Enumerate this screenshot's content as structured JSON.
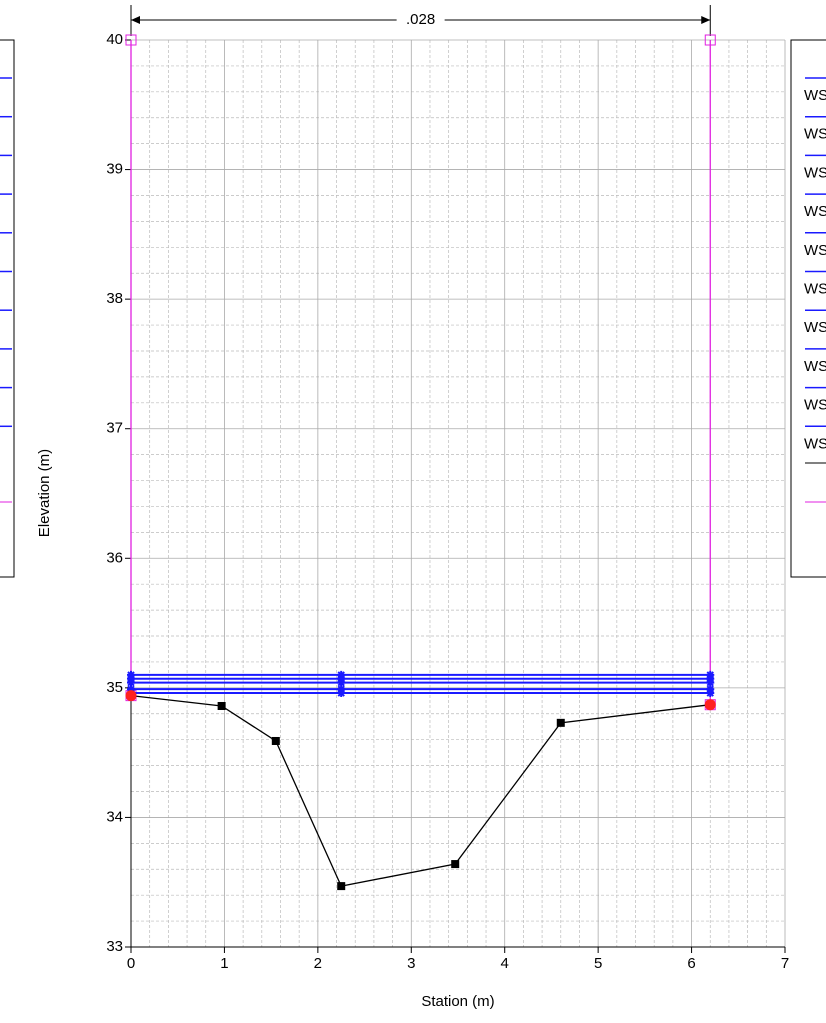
{
  "chart_data": {
    "type": "line",
    "xlabel": "Station (m)",
    "ylabel": "Elevation (m)",
    "xlim": [
      0,
      7
    ],
    "ylim": [
      33,
      40
    ],
    "xticks": [
      0,
      1,
      2,
      3,
      4,
      5,
      6,
      7
    ],
    "yticks": [
      33,
      34,
      35,
      36,
      37,
      38,
      39,
      40
    ],
    "grid": true,
    "annotation": {
      "text": ".028",
      "x": [
        0,
        6.2
      ]
    },
    "series": [
      {
        "color": "#e020e0",
        "marker": "open-square",
        "x": [
          0,
          0
        ],
        "values": [
          34.94,
          40
        ]
      },
      {
        "color": "#e020e0",
        "marker": "open-square",
        "x": [
          6.2,
          6.2
        ],
        "values": [
          34.87,
          40
        ]
      },
      {
        "color": "#1a1aff",
        "marker": "star",
        "x": [
          0,
          2.25,
          6.2
        ],
        "values": [
          35.1,
          35.1,
          35.1
        ]
      },
      {
        "color": "#1a1aff",
        "marker": "star",
        "x": [
          0,
          2.25,
          6.2
        ],
        "values": [
          35.07,
          35.07,
          35.07
        ]
      },
      {
        "color": "#1a1aff",
        "marker": "star",
        "x": [
          0,
          2.25,
          6.2
        ],
        "values": [
          35.04,
          35.04,
          35.04
        ]
      },
      {
        "color": "#1a1aff",
        "marker": "star",
        "x": [
          0,
          2.25,
          6.2
        ],
        "values": [
          34.99,
          34.99,
          34.99
        ]
      },
      {
        "color": "#1a1aff",
        "marker": "star",
        "x": [
          0,
          2.25,
          6.2
        ],
        "values": [
          34.96,
          34.96,
          34.96
        ]
      },
      {
        "color": "#000000",
        "marker": "square",
        "x": [
          0,
          0.97,
          1.55,
          2.25,
          3.47,
          4.6,
          6.2
        ],
        "values": [
          34.94,
          34.86,
          34.59,
          33.47,
          33.64,
          34.73,
          34.87
        ]
      },
      {
        "color": "#ff2020",
        "marker": "dot",
        "line": false,
        "x": [
          0,
          6.2
        ],
        "values": [
          34.94,
          34.87
        ]
      }
    ],
    "legend_labels": [
      "WS",
      "WS",
      "WS",
      "WS",
      "WS",
      "WS",
      "WS",
      "WS",
      "WS",
      "WS"
    ]
  }
}
